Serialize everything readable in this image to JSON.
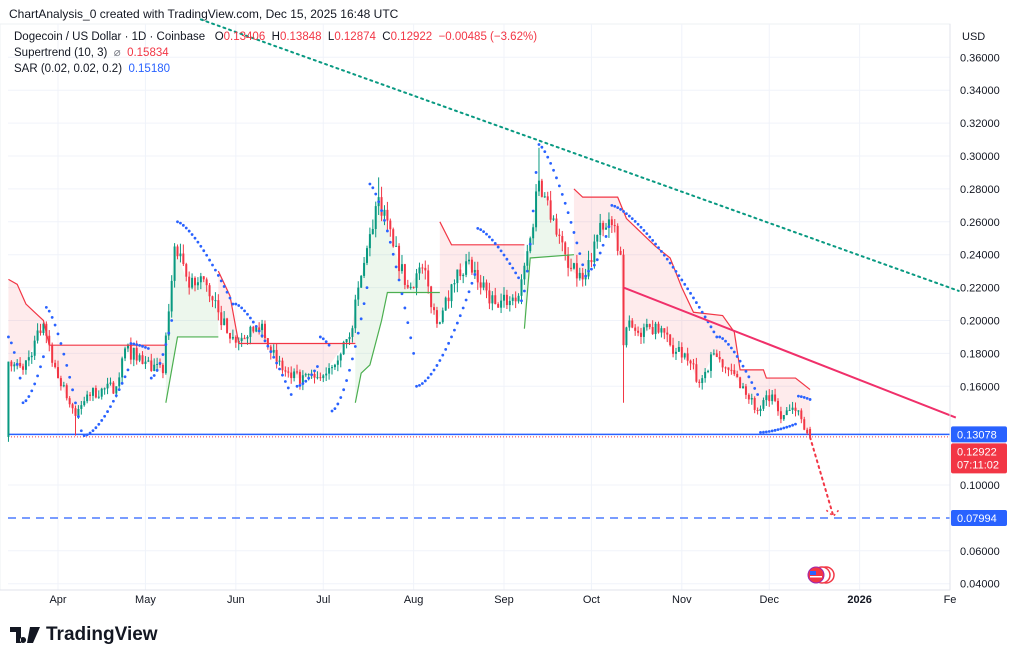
{
  "credit": "ChartAnalysis_0 created with TradingView.com, Dec 15, 2025 16:48 UTC",
  "legend": {
    "symbol": "Dogecoin / US Dollar · 1D · Coinbase",
    "o_label": "O",
    "o": "0.13406",
    "h_label": "H",
    "h": "0.13848",
    "l_label": "L",
    "l": "0.12874",
    "c_label": "C",
    "c": "0.12922",
    "change": "−0.00485 (−3.62%)",
    "supertrend": "Supertrend (10, 3)",
    "supertrend_icon": "⌀",
    "supertrend_val": "0.15834",
    "sar": "SAR (0.02, 0.02, 0.2)",
    "sar_val": "0.15180"
  },
  "logo": "TradingView",
  "colors": {
    "up": "#089981",
    "down": "#f23645",
    "sar": "#2962ff",
    "st_up": "#4caf50",
    "st_down": "#f23645",
    "trend_green": "#089981",
    "trend_pink": "#f0306a",
    "level": "#2962ff"
  },
  "chart_data": {
    "type": "candlestick",
    "currency": "USD",
    "ylim": [
      0.04,
      0.37
    ],
    "y_ticks": [
      "0.36000",
      "0.34000",
      "0.32000",
      "0.30000",
      "0.28000",
      "0.26000",
      "0.24000",
      "0.22000",
      "0.20000",
      "0.18000",
      "0.16000",
      "0.10000",
      "0.06000",
      "0.04000"
    ],
    "x_ticks": [
      {
        "label": "Apr",
        "day": 0
      },
      {
        "label": "May",
        "day": 30
      },
      {
        "label": "Jun",
        "day": 61
      },
      {
        "label": "Jul",
        "day": 91
      },
      {
        "label": "Aug",
        "day": 122
      },
      {
        "label": "Sep",
        "day": 153
      },
      {
        "label": "Oct",
        "day": 183
      },
      {
        "label": "Nov",
        "day": 214
      },
      {
        "label": "Dec",
        "day": 244
      },
      {
        "label": "2026",
        "day": 275
      },
      {
        "label": "Fe",
        "day": 306
      }
    ],
    "day_zero": "2025-04-01",
    "close_keypoints": [
      [
        -17,
        0.175
      ],
      [
        -12,
        0.17
      ],
      [
        -5,
        0.198
      ],
      [
        0,
        0.165
      ],
      [
        6,
        0.142
      ],
      [
        10,
        0.155
      ],
      [
        20,
        0.16
      ],
      [
        23,
        0.183
      ],
      [
        30,
        0.175
      ],
      [
        36,
        0.168
      ],
      [
        40,
        0.245
      ],
      [
        45,
        0.22
      ],
      [
        50,
        0.225
      ],
      [
        55,
        0.205
      ],
      [
        60,
        0.19
      ],
      [
        65,
        0.19
      ],
      [
        70,
        0.198
      ],
      [
        75,
        0.175
      ],
      [
        80,
        0.165
      ],
      [
        90,
        0.165
      ],
      [
        100,
        0.19
      ],
      [
        105,
        0.235
      ],
      [
        110,
        0.275
      ],
      [
        115,
        0.245
      ],
      [
        120,
        0.22
      ],
      [
        125,
        0.232
      ],
      [
        130,
        0.198
      ],
      [
        135,
        0.222
      ],
      [
        140,
        0.236
      ],
      [
        145,
        0.22
      ],
      [
        150,
        0.21
      ],
      [
        158,
        0.215
      ],
      [
        162,
        0.25
      ],
      [
        165,
        0.285
      ],
      [
        170,
        0.262
      ],
      [
        175,
        0.232
      ],
      [
        180,
        0.225
      ],
      [
        185,
        0.252
      ],
      [
        190,
        0.258
      ],
      [
        193,
        0.24
      ],
      [
        194,
        0.185
      ],
      [
        196,
        0.2
      ],
      [
        200,
        0.19
      ],
      [
        205,
        0.198
      ],
      [
        210,
        0.185
      ],
      [
        215,
        0.18
      ],
      [
        220,
        0.162
      ],
      [
        225,
        0.18
      ],
      [
        230,
        0.17
      ],
      [
        235,
        0.16
      ],
      [
        240,
        0.145
      ],
      [
        245,
        0.155
      ],
      [
        248,
        0.14
      ],
      [
        252,
        0.147
      ],
      [
        255,
        0.14
      ],
      [
        258,
        0.12922
      ]
    ],
    "supertrend": [
      {
        "trend": "down",
        "points": [
          [
            -17,
            0.225
          ],
          [
            -14,
            0.222
          ],
          [
            -11,
            0.21
          ],
          [
            -8,
            0.205
          ],
          [
            -5,
            0.2
          ],
          [
            -3,
            0.185
          ],
          [
            37,
            0.185
          ]
        ]
      },
      {
        "trend": "up",
        "points": [
          [
            37,
            0.15
          ],
          [
            39,
            0.17
          ],
          [
            41,
            0.19
          ],
          [
            55,
            0.19
          ]
        ]
      },
      {
        "trend": "down",
        "points": [
          [
            55,
            0.23
          ],
          [
            59,
            0.215
          ],
          [
            62,
            0.186
          ],
          [
            102,
            0.186
          ]
        ]
      },
      {
        "trend": "up",
        "points": [
          [
            102,
            0.15
          ],
          [
            104,
            0.168
          ],
          [
            107,
            0.173
          ],
          [
            111,
            0.2
          ],
          [
            113,
            0.217
          ],
          [
            131,
            0.217
          ]
        ]
      },
      {
        "trend": "down",
        "points": [
          [
            131,
            0.26
          ],
          [
            135,
            0.246
          ],
          [
            160,
            0.246
          ]
        ]
      },
      {
        "trend": "up",
        "points": [
          [
            160,
            0.195
          ],
          [
            162,
            0.238
          ],
          [
            177,
            0.24
          ]
        ]
      },
      {
        "trend": "down",
        "points": [
          [
            177,
            0.28
          ],
          [
            180,
            0.275
          ],
          [
            192,
            0.275
          ],
          [
            195,
            0.262
          ],
          [
            205,
            0.245
          ],
          [
            210,
            0.238
          ],
          [
            214,
            0.22
          ],
          [
            218,
            0.205
          ],
          [
            228,
            0.203
          ],
          [
            232,
            0.193
          ],
          [
            234,
            0.17
          ],
          [
            242,
            0.17
          ],
          [
            243,
            0.165
          ],
          [
            253,
            0.165
          ],
          [
            258,
            0.158
          ]
        ]
      }
    ],
    "sar": [
      {
        "from": [
          -17,
          0.19
        ],
        "to": [
          -13,
          0.165
        ]
      },
      {
        "from": [
          -12,
          0.15
        ],
        "to": [
          -5,
          0.178
        ]
      },
      {
        "from": [
          -4,
          0.208
        ],
        "to": [
          8,
          0.133
        ]
      },
      {
        "from": [
          9,
          0.13
        ],
        "to": [
          24,
          0.17
        ]
      },
      {
        "from": [
          25,
          0.186
        ],
        "to": [
          31,
          0.183
        ]
      },
      {
        "from": [
          32,
          0.165
        ],
        "to": [
          39,
          0.2
        ]
      },
      {
        "from": [
          41,
          0.26
        ],
        "to": [
          60,
          0.21
        ]
      },
      {
        "from": [
          61,
          0.21
        ],
        "to": [
          80,
          0.155
        ]
      },
      {
        "from": [
          82,
          0.16
        ],
        "to": [
          89,
          0.172
        ]
      },
      {
        "from": [
          90,
          0.19
        ],
        "to": [
          93,
          0.185
        ]
      },
      {
        "from": [
          94,
          0.145
        ],
        "to": [
          106,
          0.22
        ]
      },
      {
        "from": [
          107,
          0.283
        ],
        "to": [
          122,
          0.18
        ]
      },
      {
        "from": [
          123,
          0.16
        ],
        "to": [
          143,
          0.228
        ]
      },
      {
        "from": [
          144,
          0.256
        ],
        "to": [
          158,
          0.226
        ]
      },
      {
        "from": [
          159,
          0.212
        ],
        "to": [
          164,
          0.29
        ]
      },
      {
        "from": [
          165,
          0.307
        ],
        "to": [
          181,
          0.227
        ]
      },
      {
        "from": [
          182,
          0.23
        ],
        "to": [
          189,
          0.257
        ]
      },
      {
        "from": [
          190,
          0.27
        ],
        "to": [
          226,
          0.19
        ]
      },
      {
        "from": [
          227,
          0.19
        ],
        "to": [
          240,
          0.155
        ]
      },
      {
        "from": [
          241,
          0.132
        ],
        "to": [
          253,
          0.137
        ]
      },
      {
        "from": [
          254,
          0.154
        ],
        "to": [
          258,
          0.152
        ]
      }
    ],
    "trendlines": [
      {
        "name": "descending-resistance",
        "style": "dotted",
        "color": "#089981",
        "from": [
          49,
          0.383
        ],
        "to": [
          309,
          0.218
        ]
      },
      {
        "name": "lower-high-trendline",
        "style": "solid",
        "color": "#f0306a",
        "from": [
          194,
          0.22
        ],
        "to": [
          308,
          0.141
        ]
      },
      {
        "name": "projection",
        "style": "dotted",
        "color": "#f23645",
        "from": [
          258,
          0.129
        ],
        "to": [
          266,
          0.081
        ]
      }
    ],
    "levels": [
      {
        "value": 0.13078,
        "label": "0.13078",
        "style": "solid"
      },
      {
        "value": 0.07994,
        "label": "0.07994",
        "style": "dashed"
      }
    ],
    "last_price": {
      "value": 0.12922,
      "label": "0.12922",
      "countdown": "07:11:02"
    }
  }
}
